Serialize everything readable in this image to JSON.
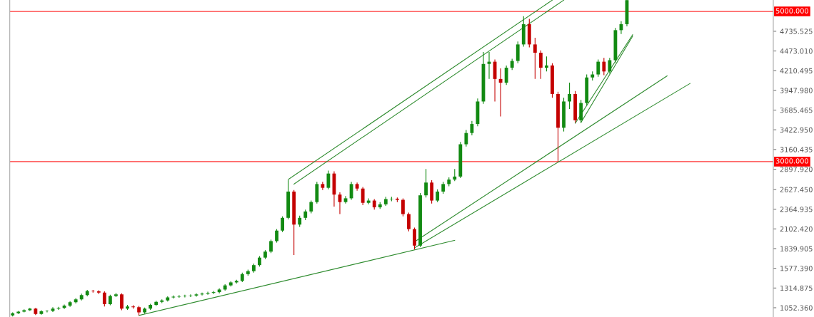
{
  "chart_data": {
    "type": "candlestick",
    "categories": [
      null,
      null,
      null,
      null,
      null,
      null,
      null,
      null,
      null,
      null,
      null,
      null,
      null,
      null,
      null,
      null,
      null,
      null,
      null,
      null,
      null,
      null,
      null,
      null,
      null,
      null,
      null,
      null,
      null,
      null,
      null,
      null,
      null,
      null,
      null,
      null,
      null,
      null,
      null,
      null,
      null,
      null,
      null,
      null,
      null,
      null,
      null,
      null,
      null,
      null,
      null,
      null,
      null,
      null,
      null,
      null,
      null,
      null,
      null,
      null,
      null,
      null,
      null,
      null,
      null,
      null,
      null,
      null,
      null,
      null,
      null,
      null,
      null,
      null,
      null,
      null,
      null,
      null,
      null,
      null,
      null,
      null,
      null,
      null,
      null,
      null,
      null,
      null,
      null,
      null,
      null,
      null,
      null,
      null,
      null,
      null,
      null,
      null,
      null,
      null,
      null,
      null,
      null,
      null,
      null,
      null,
      null,
      null,
      null,
      null,
      null,
      null,
      null,
      null,
      null,
      null,
      null,
      null,
      null,
      null,
      null,
      null,
      null,
      null,
      null,
      null,
      null,
      null,
      null,
      null,
      null,
      null,
      null
    ],
    "ohlc": [
      [
        950,
        990,
        935,
        980
      ],
      [
        980,
        1010,
        970,
        1000
      ],
      [
        1000,
        1030,
        990,
        1020
      ],
      [
        1020,
        1050,
        1010,
        1040
      ],
      [
        1040,
        1050,
        955,
        970
      ],
      [
        970,
        1020,
        960,
        1005
      ],
      [
        1005,
        1020,
        990,
        1010
      ],
      [
        1010,
        1060,
        995,
        1040
      ],
      [
        1040,
        1065,
        1025,
        1050
      ],
      [
        1050,
        1095,
        1035,
        1080
      ],
      [
        1080,
        1140,
        1065,
        1125
      ],
      [
        1125,
        1180,
        1110,
        1165
      ],
      [
        1165,
        1240,
        1150,
        1220
      ],
      [
        1220,
        1290,
        1205,
        1275
      ],
      [
        1275,
        1290,
        1255,
        1270
      ],
      [
        1270,
        1285,
        1235,
        1255
      ],
      [
        1255,
        1270,
        1070,
        1100
      ],
      [
        1100,
        1225,
        1085,
        1210
      ],
      [
        1210,
        1250,
        1195,
        1230
      ],
      [
        1230,
        1245,
        1020,
        1040
      ],
      [
        1040,
        1090,
        1025,
        1070
      ],
      [
        1070,
        1085,
        1040,
        1060
      ],
      [
        1060,
        1075,
        950,
        990
      ],
      [
        990,
        1055,
        975,
        1040
      ],
      [
        1040,
        1105,
        1025,
        1090
      ],
      [
        1090,
        1145,
        1075,
        1130
      ],
      [
        1130,
        1165,
        1115,
        1150
      ],
      [
        1150,
        1205,
        1135,
        1190
      ],
      [
        1190,
        1215,
        1175,
        1200
      ],
      [
        1200,
        1220,
        1185,
        1205
      ],
      [
        1205,
        1225,
        1190,
        1210
      ],
      [
        1210,
        1230,
        1195,
        1215
      ],
      [
        1215,
        1245,
        1200,
        1230
      ],
      [
        1230,
        1255,
        1215,
        1240
      ],
      [
        1240,
        1265,
        1225,
        1250
      ],
      [
        1250,
        1275,
        1235,
        1260
      ],
      [
        1260,
        1310,
        1245,
        1295
      ],
      [
        1295,
        1365,
        1280,
        1350
      ],
      [
        1350,
        1405,
        1335,
        1390
      ],
      [
        1390,
        1425,
        1375,
        1410
      ],
      [
        1410,
        1520,
        1395,
        1500
      ],
      [
        1500,
        1560,
        1480,
        1540
      ],
      [
        1540,
        1640,
        1520,
        1620
      ],
      [
        1620,
        1740,
        1600,
        1720
      ],
      [
        1720,
        1820,
        1700,
        1800
      ],
      [
        1800,
        1960,
        1780,
        1940
      ],
      [
        1940,
        2100,
        1920,
        2080
      ],
      [
        2080,
        2270,
        2060,
        2250
      ],
      [
        2250,
        2750,
        2230,
        2600
      ],
      [
        2600,
        2620,
        1755,
        2160
      ],
      [
        2160,
        2280,
        2130,
        2250
      ],
      [
        2250,
        2360,
        2220,
        2335
      ],
      [
        2335,
        2480,
        2310,
        2460
      ],
      [
        2460,
        2730,
        2440,
        2700
      ],
      [
        2700,
        2730,
        2620,
        2650
      ],
      [
        2650,
        2880,
        2630,
        2840
      ],
      [
        2840,
        2870,
        2400,
        2560
      ],
      [
        2560,
        2590,
        2300,
        2460
      ],
      [
        2460,
        2540,
        2440,
        2510
      ],
      [
        2510,
        2730,
        2490,
        2700
      ],
      [
        2700,
        2720,
        2610,
        2640
      ],
      [
        2640,
        2660,
        2420,
        2450
      ],
      [
        2450,
        2510,
        2430,
        2480
      ],
      [
        2480,
        2500,
        2360,
        2390
      ],
      [
        2390,
        2460,
        2370,
        2430
      ],
      [
        2430,
        2530,
        2410,
        2500
      ],
      [
        2500,
        2530,
        2470,
        2505
      ],
      [
        2505,
        2520,
        2460,
        2490
      ],
      [
        2490,
        2510,
        2270,
        2300
      ],
      [
        2300,
        2320,
        2070,
        2100
      ],
      [
        2100,
        2120,
        1830,
        1880
      ],
      [
        1880,
        2580,
        1860,
        2550
      ],
      [
        2550,
        2900,
        2520,
        2720
      ],
      [
        2720,
        2750,
        2440,
        2480
      ],
      [
        2480,
        2630,
        2460,
        2600
      ],
      [
        2600,
        2730,
        2570,
        2700
      ],
      [
        2700,
        2790,
        2670,
        2760
      ],
      [
        2760,
        2900,
        2740,
        2800
      ],
      [
        2800,
        3260,
        2780,
        3230
      ],
      [
        3230,
        3420,
        3200,
        3380
      ],
      [
        3380,
        3540,
        3350,
        3500
      ],
      [
        3500,
        3840,
        3470,
        3800
      ],
      [
        3800,
        4460,
        3770,
        4300
      ],
      [
        4300,
        4460,
        4100,
        4330
      ],
      [
        4330,
        4360,
        3800,
        4100
      ],
      [
        4100,
        4240,
        3600,
        4050
      ],
      [
        4050,
        4280,
        4020,
        4250
      ],
      [
        4250,
        4370,
        4220,
        4340
      ],
      [
        4340,
        4600,
        4310,
        4560
      ],
      [
        4560,
        4935,
        4530,
        4830
      ],
      [
        4830,
        4900,
        4520,
        4560
      ],
      [
        4560,
        4650,
        4100,
        4450
      ],
      [
        4450,
        4480,
        4100,
        4250
      ],
      [
        4250,
        4400,
        4200,
        4280
      ],
      [
        4280,
        4310,
        3850,
        3900
      ],
      [
        3900,
        3930,
        3000,
        3450
      ],
      [
        3450,
        3850,
        3400,
        3800
      ],
      [
        3800,
        4050,
        3700,
        3900
      ],
      [
        3900,
        3940,
        3520,
        3550
      ],
      [
        3550,
        3820,
        3520,
        3780
      ],
      [
        3780,
        4160,
        3750,
        4120
      ],
      [
        4120,
        4200,
        4080,
        4160
      ],
      [
        4160,
        4360,
        4130,
        4330
      ],
      [
        4330,
        4380,
        4150,
        4200
      ],
      [
        4200,
        4380,
        4170,
        4350
      ],
      [
        4350,
        4780,
        4320,
        4750
      ],
      [
        4750,
        4870,
        4700,
        4830
      ],
      [
        4830,
        5150,
        4800,
        5150
      ],
      null,
      null,
      null,
      null,
      null,
      null,
      null,
      null,
      null,
      null,
      null,
      null,
      null,
      null,
      null,
      null,
      null,
      null,
      null,
      null,
      null,
      null,
      null,
      null,
      null
    ],
    "colors": [
      "#128a12",
      "#128a12",
      "#128a12",
      "#128a12",
      "#c40000",
      "#128a12",
      "#128a12",
      "#128a12",
      "#128a12",
      "#128a12",
      "#128a12",
      "#128a12",
      "#128a12",
      "#128a12",
      "#c40000",
      "#c40000",
      "#c40000",
      "#128a12",
      "#128a12",
      "#c40000",
      "#128a12",
      "#c40000",
      "#c40000",
      "#128a12",
      "#128a12",
      "#128a12",
      "#128a12",
      "#128a12",
      "#128a12",
      "#128a12",
      "#128a12",
      "#128a12",
      "#128a12",
      "#128a12",
      "#128a12",
      "#128a12",
      "#128a12",
      "#128a12",
      "#128a12",
      "#128a12",
      "#128a12",
      "#128a12",
      "#128a12",
      "#128a12",
      "#128a12",
      "#128a12",
      "#128a12",
      "#128a12",
      "#128a12",
      "#c40000",
      "#128a12",
      "#128a12",
      "#128a12",
      "#128a12",
      "#c40000",
      "#128a12",
      "#c40000",
      "#c40000",
      "#128a12",
      "#128a12",
      "#c40000",
      "#c40000",
      "#128a12",
      "#c40000",
      "#128a12",
      "#128a12",
      "#128a12",
      "#c40000",
      "#c40000",
      "#c40000",
      "#c40000",
      "#128a12",
      "#128a12",
      "#c40000",
      "#128a12",
      "#128a12",
      "#128a12",
      "#128a12",
      "#128a12",
      "#128a12",
      "#128a12",
      "#128a12",
      "#128a12",
      "#128a12",
      "#c40000",
      "#c40000",
      "#128a12",
      "#128a12",
      "#128a12",
      "#128a12",
      "#c40000",
      "#c40000",
      "#c40000",
      "#128a12",
      "#c40000",
      "#c40000",
      "#128a12",
      "#128a12",
      "#c40000",
      "#128a12",
      "#128a12",
      "#128a12",
      "#128a12",
      "#c40000",
      "#128a12",
      "#128a12",
      "#128a12",
      "#128a12",
      null,
      null,
      null,
      null,
      null,
      null,
      null,
      null,
      null,
      null,
      null,
      null,
      null,
      null,
      null,
      null,
      null,
      null,
      null,
      null,
      null,
      null,
      null,
      null,
      null
    ],
    "series": [
      {
        "type": "line",
        "color": "#2e8b2e",
        "values": [
          null,
          null,
          null,
          null,
          null,
          null,
          null,
          null,
          null,
          null,
          null,
          null,
          null,
          null,
          null,
          null,
          null,
          null,
          null,
          null,
          null,
          null,
          950,
          null,
          null,
          null,
          null,
          null,
          null,
          null,
          null,
          null,
          null,
          null,
          null,
          null,
          null,
          null,
          null,
          null,
          null,
          null,
          null,
          null,
          null,
          null,
          null,
          null,
          null,
          null,
          null,
          null,
          null,
          null,
          null,
          null,
          null,
          null,
          null,
          null,
          null,
          null,
          null,
          null,
          null,
          null,
          null,
          null,
          null,
          null,
          null,
          null,
          null,
          null,
          null,
          null,
          null,
          1950,
          null,
          null,
          null,
          null,
          null,
          null,
          null,
          null,
          null,
          null,
          null,
          null,
          null,
          null,
          null,
          null,
          null,
          null,
          null,
          null,
          null,
          null,
          null,
          null,
          null,
          null,
          null,
          null,
          null,
          null,
          null,
          null,
          null,
          null,
          null,
          null,
          null,
          null,
          null,
          null,
          null,
          null,
          null,
          null,
          null,
          null,
          null,
          null,
          null,
          null,
          null,
          null,
          null,
          null,
          null
        ]
      },
      {
        "type": "line",
        "color": "#2e8b2e",
        "values": [
          null,
          null,
          null,
          null,
          null,
          null,
          null,
          null,
          null,
          null,
          null,
          null,
          null,
          null,
          null,
          null,
          null,
          null,
          null,
          null,
          null,
          null,
          null,
          null,
          null,
          null,
          null,
          null,
          null,
          null,
          null,
          null,
          null,
          null,
          null,
          null,
          null,
          null,
          null,
          null,
          null,
          null,
          null,
          null,
          null,
          null,
          null,
          null,
          null,
          null,
          null,
          null,
          null,
          null,
          null,
          null,
          null,
          null,
          null,
          null,
          null,
          null,
          null,
          null,
          null,
          null,
          null,
          null,
          null,
          null,
          1930,
          null,
          null,
          null,
          null,
          null,
          null,
          null,
          null,
          null,
          null,
          null,
          null,
          null,
          null,
          null,
          null,
          null,
          null,
          null,
          null,
          null,
          null,
          null,
          null,
          null,
          null,
          null,
          null,
          null,
          null,
          null,
          null,
          null,
          null,
          null,
          null,
          null,
          null,
          null,
          null,
          null,
          null,
          null,
          4140,
          null,
          null,
          null,
          null,
          null,
          null,
          null,
          null,
          null,
          null,
          null,
          null,
          null,
          null,
          null,
          null,
          null,
          null
        ]
      },
      {
        "type": "line",
        "color": "#2e8b2e",
        "values": [
          null,
          null,
          null,
          null,
          null,
          null,
          null,
          null,
          null,
          null,
          null,
          null,
          null,
          null,
          null,
          null,
          null,
          null,
          null,
          null,
          null,
          null,
          null,
          null,
          null,
          null,
          null,
          null,
          null,
          null,
          null,
          null,
          null,
          null,
          null,
          null,
          null,
          null,
          null,
          null,
          null,
          null,
          null,
          null,
          null,
          null,
          null,
          null,
          null,
          null,
          null,
          null,
          null,
          null,
          null,
          null,
          null,
          null,
          null,
          null,
          null,
          null,
          null,
          null,
          null,
          null,
          null,
          null,
          null,
          null,
          1850,
          null,
          null,
          null,
          null,
          null,
          null,
          null,
          null,
          null,
          null,
          null,
          null,
          null,
          null,
          null,
          null,
          null,
          null,
          null,
          null,
          null,
          null,
          null,
          null,
          null,
          null,
          null,
          null,
          null,
          null,
          null,
          null,
          null,
          null,
          null,
          null,
          null,
          null,
          null,
          null,
          null,
          null,
          null,
          null,
          null,
          null,
          null,
          4040,
          null,
          null,
          null,
          null,
          null,
          null,
          null,
          null,
          null,
          null,
          null,
          null,
          null,
          null
        ]
      },
      {
        "type": "line",
        "color": "#2e8b2e",
        "values": [
          null,
          null,
          null,
          null,
          null,
          null,
          null,
          null,
          null,
          null,
          null,
          null,
          null,
          null,
          null,
          null,
          null,
          null,
          null,
          null,
          null,
          null,
          null,
          null,
          null,
          null,
          null,
          null,
          null,
          null,
          null,
          null,
          null,
          null,
          null,
          null,
          null,
          null,
          null,
          null,
          null,
          null,
          null,
          null,
          null,
          null,
          null,
          null,
          2760,
          null,
          null,
          null,
          null,
          null,
          null,
          null,
          null,
          null,
          null,
          null,
          null,
          null,
          null,
          null,
          null,
          null,
          null,
          null,
          null,
          null,
          null,
          null,
          null,
          null,
          null,
          null,
          null,
          null,
          null,
          null,
          null,
          null,
          null,
          null,
          null,
          null,
          null,
          null,
          null,
          null,
          null,
          null,
          null,
          null,
          5150,
          null,
          null,
          null,
          null,
          null,
          null,
          null,
          null,
          null,
          null,
          null,
          null,
          null,
          null,
          null,
          null,
          null,
          null,
          null,
          null,
          null,
          null,
          null,
          null,
          null,
          null,
          null,
          null,
          null,
          null,
          null,
          null,
          null,
          null,
          null,
          null,
          null,
          null
        ]
      },
      {
        "type": "line",
        "color": "#2e8b2e",
        "values": [
          null,
          null,
          null,
          null,
          null,
          null,
          null,
          null,
          null,
          null,
          null,
          null,
          null,
          null,
          null,
          null,
          null,
          null,
          null,
          null,
          null,
          null,
          null,
          null,
          null,
          null,
          null,
          null,
          null,
          null,
          null,
          null,
          null,
          null,
          null,
          null,
          null,
          null,
          null,
          null,
          null,
          null,
          null,
          null,
          null,
          null,
          null,
          null,
          null,
          2700,
          null,
          null,
          null,
          null,
          null,
          null,
          null,
          null,
          null,
          null,
          null,
          null,
          null,
          null,
          null,
          null,
          null,
          null,
          null,
          null,
          null,
          null,
          null,
          null,
          null,
          null,
          null,
          null,
          null,
          null,
          null,
          null,
          null,
          null,
          null,
          null,
          null,
          null,
          null,
          null,
          null,
          null,
          null,
          null,
          null,
          null,
          5150,
          null,
          null,
          null,
          null,
          null,
          null,
          null,
          null,
          null,
          null,
          null,
          null,
          null,
          null,
          null,
          null,
          null,
          null,
          null,
          null,
          null,
          null,
          null,
          null,
          null,
          null,
          null,
          null,
          null,
          null,
          null,
          null,
          null,
          null,
          null,
          null
        ]
      },
      {
        "type": "line",
        "color": "#2e8b2e",
        "values": [
          null,
          null,
          null,
          null,
          null,
          null,
          null,
          null,
          null,
          null,
          null,
          null,
          null,
          null,
          null,
          null,
          null,
          null,
          null,
          null,
          null,
          null,
          null,
          null,
          null,
          null,
          null,
          null,
          null,
          null,
          null,
          null,
          null,
          null,
          null,
          null,
          null,
          null,
          null,
          null,
          null,
          null,
          null,
          null,
          null,
          null,
          null,
          null,
          null,
          null,
          null,
          null,
          null,
          null,
          null,
          null,
          null,
          null,
          null,
          null,
          null,
          null,
          null,
          null,
          null,
          null,
          null,
          null,
          null,
          null,
          null,
          null,
          null,
          null,
          null,
          null,
          null,
          null,
          null,
          null,
          null,
          null,
          null,
          null,
          null,
          null,
          null,
          null,
          null,
          null,
          null,
          null,
          null,
          null,
          null,
          null,
          null,
          null,
          3510,
          null,
          null,
          null,
          null,
          null,
          null,
          null,
          null,
          null,
          4690,
          null,
          null,
          null,
          null,
          null,
          null,
          null,
          null,
          null,
          null,
          null,
          null,
          null,
          null,
          null,
          null,
          null,
          null,
          null,
          null,
          null,
          null,
          null,
          null
        ]
      },
      {
        "type": "line",
        "color": "#2e8b2e",
        "values": [
          null,
          null,
          null,
          null,
          null,
          null,
          null,
          null,
          null,
          null,
          null,
          null,
          null,
          null,
          null,
          null,
          null,
          null,
          null,
          null,
          null,
          null,
          null,
          null,
          null,
          null,
          null,
          null,
          null,
          null,
          null,
          null,
          null,
          null,
          null,
          null,
          null,
          null,
          null,
          null,
          null,
          null,
          null,
          null,
          null,
          null,
          null,
          null,
          null,
          null,
          null,
          null,
          null,
          null,
          null,
          null,
          null,
          null,
          null,
          null,
          null,
          null,
          null,
          null,
          null,
          null,
          null,
          null,
          null,
          null,
          null,
          null,
          null,
          null,
          null,
          null,
          null,
          null,
          null,
          null,
          null,
          null,
          null,
          null,
          null,
          null,
          null,
          null,
          null,
          null,
          null,
          null,
          null,
          null,
          null,
          null,
          null,
          null,
          null,
          3520,
          null,
          null,
          null,
          null,
          null,
          null,
          null,
          null,
          4670,
          null,
          null,
          null,
          null,
          null,
          null,
          null,
          null,
          null,
          null,
          null,
          null,
          null,
          null,
          null,
          null,
          null,
          null,
          null,
          null,
          null,
          null,
          null,
          null
        ]
      }
    ],
    "ylim": [
      929,
      5152
    ],
    "yticks": [
      {
        "value": 1052.36,
        "label": "1052.360"
      },
      {
        "value": 1314.875,
        "label": "1314.875"
      },
      {
        "value": 1577.39,
        "label": "1577.390"
      },
      {
        "value": 1839.905,
        "label": "1839.905"
      },
      {
        "value": 2102.42,
        "label": "2102.420"
      },
      {
        "value": 2364.935,
        "label": "2364.935"
      },
      {
        "value": 2627.45,
        "label": "2627.450"
      },
      {
        "value": 2897.92,
        "label": "2897.920"
      },
      {
        "value": 3160.435,
        "label": "3160.435"
      },
      {
        "value": 3422.95,
        "label": "3422.950"
      },
      {
        "value": 3685.465,
        "label": "3685.465"
      },
      {
        "value": 3947.98,
        "label": "3947.980"
      },
      {
        "value": 4210.495,
        "label": "4210.495"
      },
      {
        "value": 4473.01,
        "label": "4473.010"
      },
      {
        "value": 4735.525,
        "label": "4735.525"
      }
    ],
    "ref_lines": [
      {
        "axis": "y",
        "value": 5000,
        "label": "5000.000",
        "color": "#ff0000"
      },
      {
        "axis": "y",
        "value": 3000,
        "label": "3000.000",
        "color": "#ff0000"
      }
    ],
    "tick_labels": "y",
    "grid": false,
    "legend": false
  }
}
